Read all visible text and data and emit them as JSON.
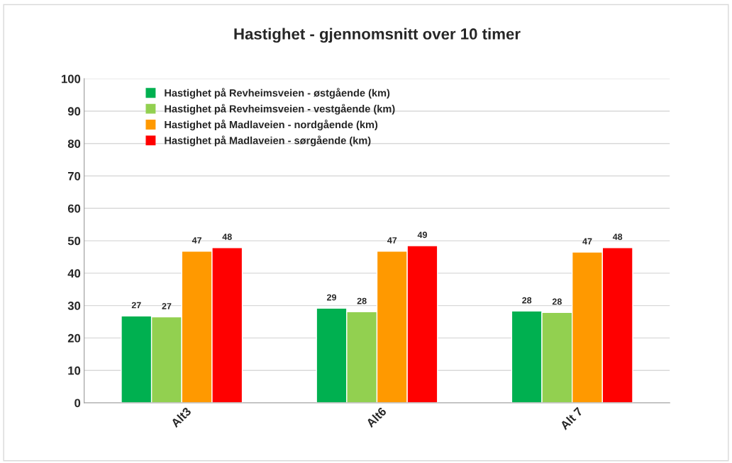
{
  "chart_data": {
    "type": "bar",
    "title": "Hastighet - gjennomsnitt over 10 timer",
    "categories": [
      "Alt3",
      "Alt6",
      "Alt 7"
    ],
    "series": [
      {
        "name": "Hastighet på Revheimsveien - østgående (km)",
        "color": "#00b050",
        "values": [
          26.8,
          29.2,
          28.3
        ],
        "value_labels": [
          "27",
          "29",
          "28"
        ]
      },
      {
        "name": "Hastighet på Revheimsveien - vestgående (km)",
        "color": "#92d050",
        "values": [
          26.5,
          28.1,
          27.9
        ],
        "value_labels": [
          "27",
          "28",
          "28"
        ]
      },
      {
        "name": "Hastighet på Madlaveien - nordgående (km)",
        "color": "#ff9900",
        "values": [
          46.8,
          46.8,
          46.5
        ],
        "value_labels": [
          "47",
          "47",
          "47"
        ]
      },
      {
        "name": "Hastighet på Madlaveien - sørgående (km)",
        "color": "#ff0000",
        "values": [
          47.9,
          48.5,
          47.9
        ],
        "value_labels": [
          "48",
          "49",
          "48"
        ]
      }
    ],
    "ylim": [
      0,
      100
    ],
    "yticks": [
      0,
      10,
      20,
      30,
      40,
      50,
      60,
      70,
      80,
      90,
      100
    ],
    "grid": "y",
    "legend": "top left",
    "marker": "square"
  }
}
